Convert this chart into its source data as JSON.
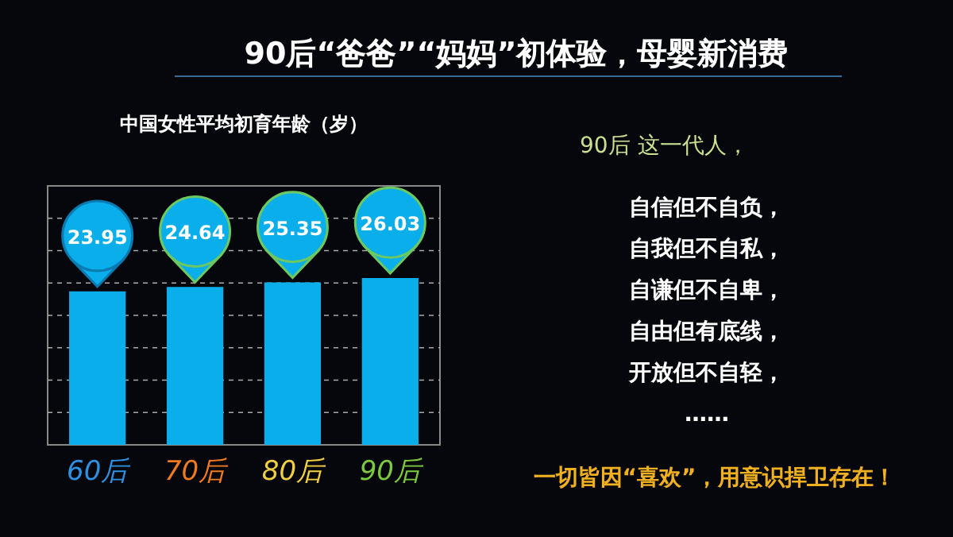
{
  "chart_data": {
    "type": "bar",
    "title": "90后“爸爸”“妈妈”初体验，母婴新消费",
    "subtitle": "中国女性平均初育年龄（岁）",
    "categories": [
      "60后",
      "70后",
      "80后",
      "90后"
    ],
    "values": [
      23.95,
      24.64,
      25.35,
      26.03
    ],
    "color": "#0aaeea",
    "data_labels": true,
    "grid": "y",
    "tick_labels": "x",
    "annotations": [
      "90后 这一代人，",
      "自信但不自负，",
      "自我但不自私，",
      "自谦但不自卑，",
      "自由但有底线，",
      "开放但不自轻，",
      "……",
      "一切皆因“喜欢”，用意识捍卫存在！"
    ]
  }
}
